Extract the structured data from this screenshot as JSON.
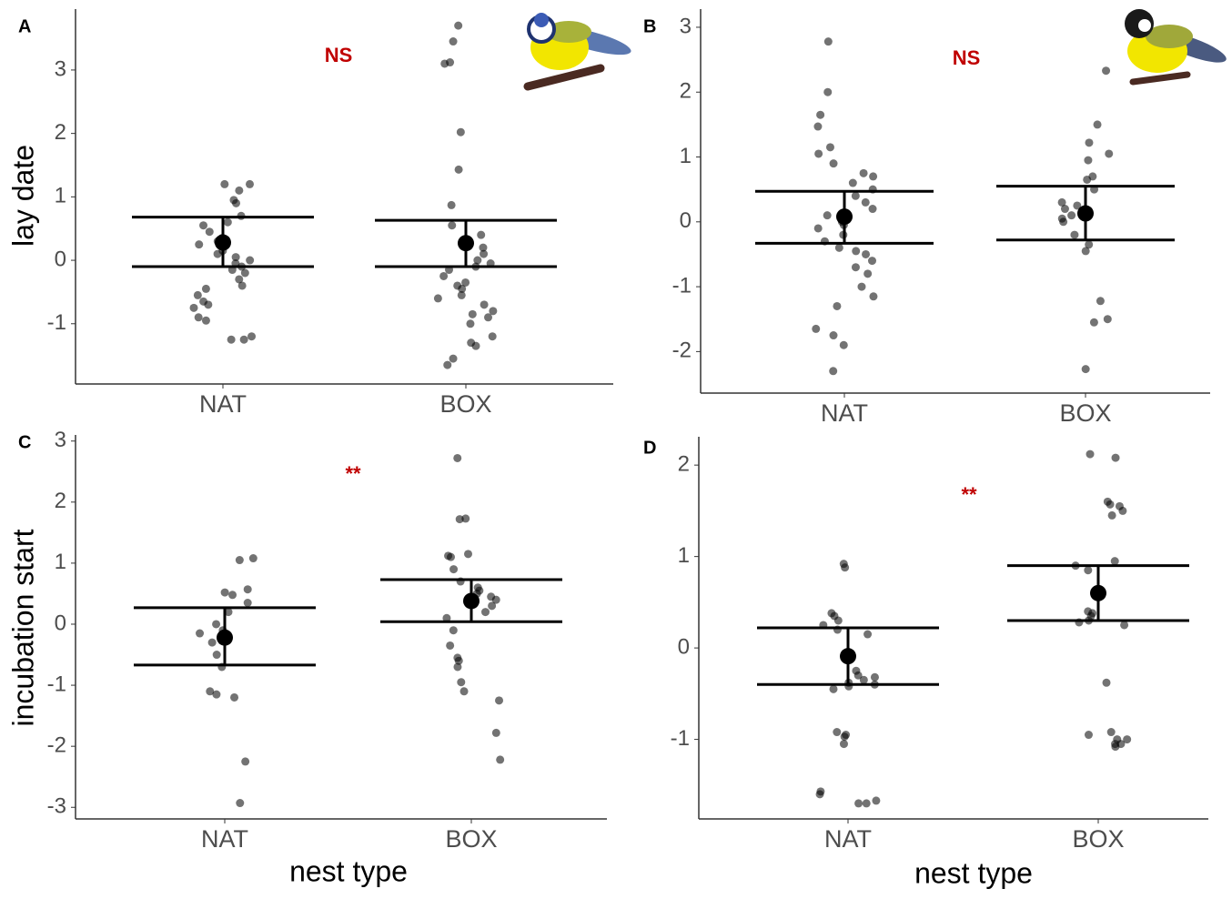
{
  "chart_data": [
    {
      "type": "dotplot",
      "label": "A",
      "ylabel": "lay date",
      "annotation": "NS",
      "categories": [
        "NAT",
        "BOX"
      ],
      "color": "#000000",
      "annotation_color": "#c00000",
      "ylim": [
        -1.95,
        3.96
      ],
      "yticks": [
        -1,
        0,
        1,
        2,
        3
      ],
      "points": [
        [
          1.2,
          1.2,
          1.1,
          0.95,
          0.9,
          0.7,
          0.6,
          0.55,
          0.45,
          0.35,
          0.3,
          0.25,
          0.15,
          0.1,
          0.05,
          0,
          -0.05,
          -0.1,
          -0.15,
          -0.2,
          -0.3,
          -0.4,
          -0.45,
          -0.55,
          -0.65,
          -0.7,
          -0.75,
          -0.9,
          -0.95,
          -1.2,
          -1.25,
          -1.25
        ],
        [
          3.7,
          3.45,
          3.12,
          3.1,
          2.02,
          1.43,
          0.87,
          0.55,
          0.4,
          0.3,
          0.2,
          0.1,
          0,
          -0.05,
          -0.1,
          -0.15,
          -0.25,
          -0.35,
          -0.4,
          -0.45,
          -0.55,
          -0.6,
          -0.7,
          -0.8,
          -0.85,
          -0.9,
          -1.0,
          -1.2,
          -1.3,
          -1.35,
          -1.55,
          -1.65
        ]
      ],
      "means": [
        0.28,
        0.27
      ],
      "lower": [
        -0.1,
        -0.1
      ],
      "upper": [
        0.68,
        0.63
      ]
    },
    {
      "type": "dotplot",
      "label": "B",
      "annotation": "NS",
      "categories": [
        "NAT",
        "BOX"
      ],
      "color": "#000000",
      "annotation_color": "#c00000",
      "ylim": [
        -2.64,
        3.28
      ],
      "yticks": [
        -2,
        -1,
        0,
        1,
        2,
        3
      ],
      "points": [
        [
          2.78,
          2.0,
          1.65,
          1.47,
          1.15,
          1.05,
          0.9,
          0.75,
          0.7,
          0.6,
          0.5,
          0.4,
          0.3,
          0.2,
          0.1,
          0.05,
          0,
          -0.05,
          -0.1,
          -0.2,
          -0.3,
          -0.4,
          -0.45,
          -0.5,
          -0.6,
          -0.7,
          -0.8,
          -1.0,
          -1.15,
          -1.3,
          -1.65,
          -1.75,
          -1.9,
          -2.3
        ],
        [
          2.33,
          1.5,
          1.22,
          1.05,
          0.95,
          0.7,
          0.65,
          0.5,
          0.3,
          0.25,
          0.2,
          0.1,
          0.05,
          0,
          -0.2,
          -0.35,
          -0.45,
          -1.22,
          -1.5,
          -1.55,
          -2.27
        ]
      ],
      "means": [
        0.08,
        0.13
      ],
      "lower": [
        -0.33,
        -0.28
      ],
      "upper": [
        0.47,
        0.55
      ]
    },
    {
      "type": "dotplot",
      "label": "C",
      "ylabel": "incubation start",
      "xlabel": "nest type",
      "annotation": "**",
      "categories": [
        "NAT",
        "BOX"
      ],
      "color": "#000000",
      "annotation_color": "#c00000",
      "ylim": [
        -3.19,
        3.1
      ],
      "yticks": [
        -3,
        -2,
        -1,
        0,
        1,
        2,
        3
      ],
      "points": [
        [
          1.08,
          1.05,
          0.57,
          0.52,
          0.48,
          0.35,
          0.2,
          0,
          -0.1,
          -0.15,
          -0.3,
          -0.5,
          -0.7,
          -1.1,
          -1.15,
          -1.2,
          -2.25,
          -2.93
        ],
        [
          2.72,
          1.73,
          1.72,
          1.15,
          1.12,
          1.1,
          0.9,
          0.7,
          0.6,
          0.55,
          0.5,
          0.45,
          0.4,
          0.3,
          0.2,
          0.1,
          -0.1,
          -0.35,
          -0.55,
          -0.6,
          -0.7,
          -0.95,
          -1.1,
          -1.25,
          -1.78,
          -2.22
        ]
      ],
      "means": [
        -0.22,
        0.38
      ],
      "lower": [
        -0.67,
        0.04
      ],
      "upper": [
        0.27,
        0.73
      ]
    },
    {
      "type": "dotplot",
      "label": "D",
      "xlabel": "nest type",
      "annotation": "**",
      "categories": [
        "NAT",
        "BOX"
      ],
      "color": "#000000",
      "annotation_color": "#c00000",
      "ylim": [
        -1.87,
        2.31
      ],
      "yticks": [
        -1,
        0,
        1,
        2
      ],
      "points": [
        [
          0.92,
          0.88,
          0.38,
          0.35,
          0.3,
          0.25,
          0.2,
          0.15,
          -0.25,
          -0.3,
          -0.32,
          -0.35,
          -0.38,
          -0.4,
          -0.42,
          -0.45,
          -0.92,
          -0.95,
          -0.97,
          -1.05,
          -1.57,
          -1.6,
          -1.67,
          -1.7,
          -1.7
        ],
        [
          2.12,
          2.08,
          1.6,
          1.57,
          1.55,
          1.5,
          1.45,
          0.95,
          0.9,
          0.85,
          0.4,
          0.38,
          0.35,
          0.3,
          0.28,
          0.25,
          -0.38,
          -0.92,
          -1.0,
          -1.05,
          -1.08,
          -1.05,
          -1.0,
          -0.95
        ]
      ],
      "means": [
        -0.09,
        0.6
      ],
      "lower": [
        -0.4,
        0.3
      ],
      "upper": [
        0.22,
        0.9
      ]
    }
  ]
}
